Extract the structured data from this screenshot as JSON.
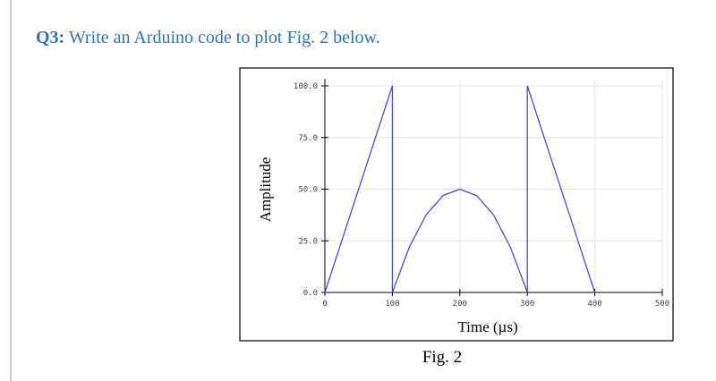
{
  "question": {
    "label": "Q3:",
    "text": "Write an Arduino code to plot Fig. 2 below."
  },
  "chart_data": {
    "type": "line",
    "xlabel": "Time (µs)",
    "ylabel": "Amplitude",
    "x": [
      0,
      100,
      100,
      125,
      150,
      175,
      200,
      225,
      250,
      275,
      300,
      300,
      400
    ],
    "series": [
      {
        "color": "#4b4bd9",
        "values": [
          0,
          100,
          0,
          21.875,
          37.5,
          46.875,
          50,
          46.875,
          37.5,
          21.875,
          0,
          100,
          0
        ]
      }
    ],
    "xlim": [
      0,
      500
    ],
    "ylim": [
      0,
      100
    ],
    "xticks": [
      0,
      100,
      200,
      300,
      400,
      500
    ],
    "yticks": [
      {
        "value": 0,
        "label": "0.0"
      },
      {
        "value": 25,
        "label": "25.0"
      },
      {
        "value": 50,
        "label": "50.0"
      },
      {
        "value": 75,
        "label": "75.0"
      },
      {
        "value": 100,
        "label": "100.0"
      }
    ],
    "grid": true
  },
  "caption": "Fig. 2"
}
